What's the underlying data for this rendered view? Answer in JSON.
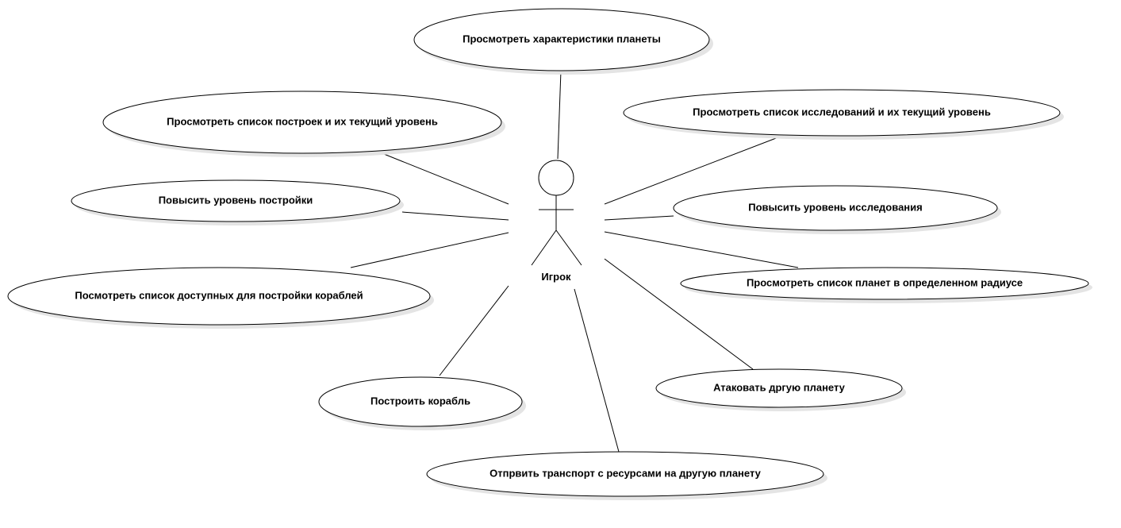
{
  "diagram": {
    "actor": {
      "name": "Игрок"
    },
    "use_cases": [
      {
        "id": "view-planet-characteristics",
        "label": "Просмотреть характеристики планеты"
      },
      {
        "id": "view-buildings-list",
        "label": "Просмотреть список построек и их текущий уровень"
      },
      {
        "id": "view-research-list",
        "label": "Просмотреть список исследований и их текущий уровень"
      },
      {
        "id": "upgrade-building",
        "label": "Повысить уровень постройки"
      },
      {
        "id": "upgrade-research",
        "label": "Повысить уровень исследования"
      },
      {
        "id": "view-available-ships",
        "label": "Посмотреть список доступных для постройки кораблей"
      },
      {
        "id": "view-planets-in-radius",
        "label": "Просмотреть список планет в определенном радиусе"
      },
      {
        "id": "build-ship",
        "label": "Построить корабль"
      },
      {
        "id": "attack-planet",
        "label": "Атаковать дргую планету"
      },
      {
        "id": "send-transport",
        "label": "Отпрвить транспорт с ресурсами на другую планету"
      }
    ]
  }
}
